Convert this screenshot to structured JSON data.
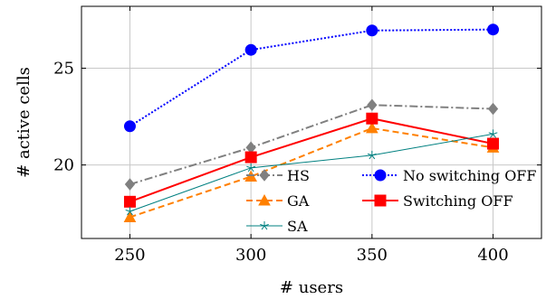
{
  "chart_data": {
    "type": "line",
    "xlabel": "# users",
    "ylabel": "# active cells",
    "x": [
      250,
      300,
      350,
      400
    ],
    "xlim": [
      230,
      420
    ],
    "ylim": [
      16.2,
      28.2
    ],
    "xticks": [
      250,
      300,
      350,
      400
    ],
    "yticks": [
      20,
      25
    ],
    "grid": true,
    "legend_position": "bottom-right, inside plot, 2 columns",
    "series": [
      {
        "name": "HS",
        "values": [
          19.0,
          20.9,
          23.1,
          22.9
        ],
        "color": "#808080",
        "dash": "dash-dot",
        "marker": "diamond"
      },
      {
        "name": "No switching OFF",
        "values": [
          22.0,
          25.95,
          26.95,
          27.0
        ],
        "color": "#0000ff",
        "dash": "dotted",
        "marker": "circle"
      },
      {
        "name": "GA",
        "values": [
          17.3,
          19.4,
          21.9,
          20.9
        ],
        "color": "#ff8000",
        "dash": "dashed",
        "marker": "triangle"
      },
      {
        "name": "Switching OFF",
        "values": [
          18.1,
          20.4,
          22.4,
          21.1
        ],
        "color": "#ff0000",
        "dash": "solid",
        "marker": "square"
      },
      {
        "name": "SA",
        "values": [
          17.6,
          19.85,
          20.5,
          21.6
        ],
        "color": "#008080",
        "dash": "solid",
        "marker": "star"
      }
    ]
  }
}
